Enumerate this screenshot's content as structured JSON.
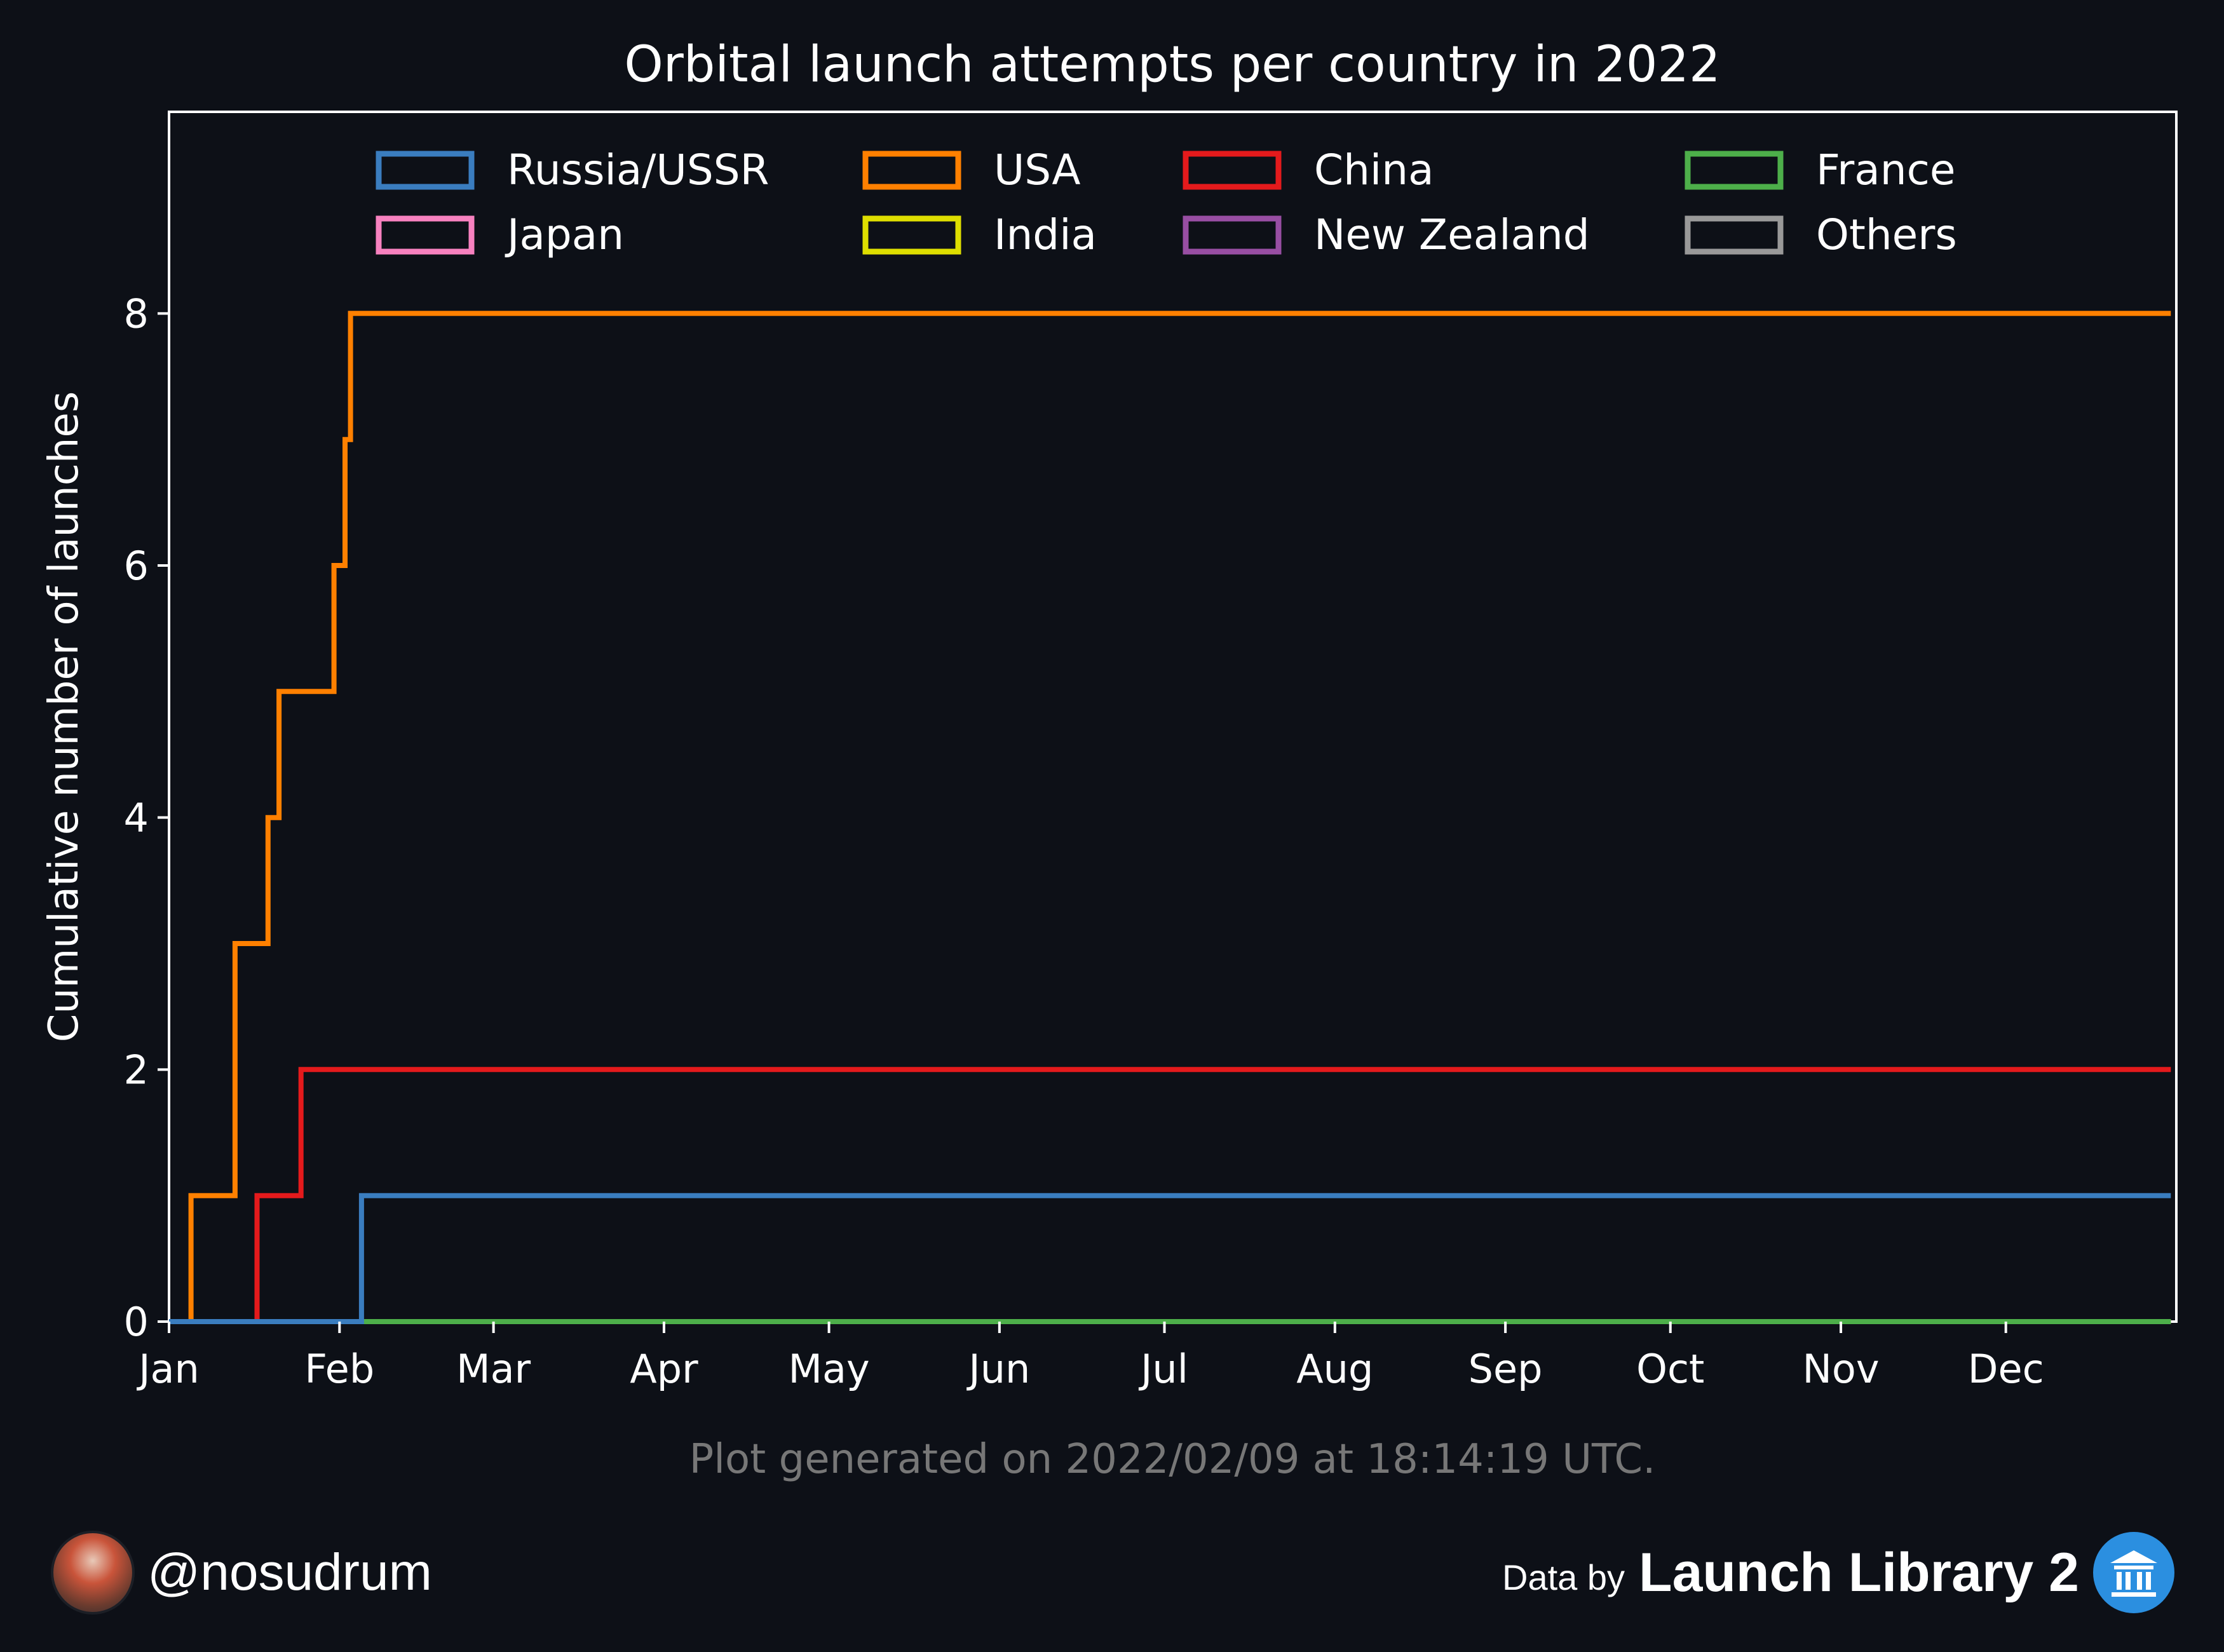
{
  "chart_data": {
    "type": "line",
    "step": true,
    "title": "Orbital launch attempts per country in 2022",
    "ylabel": "Cumulative number of launches",
    "xlabel": "",
    "x_axis": "date",
    "xlim": [
      "2022-01-01",
      "2022-12-31"
    ],
    "ylim": [
      0,
      9.6
    ],
    "yticks": [
      0,
      2,
      4,
      6,
      8
    ],
    "xticks": [
      {
        "date": "2022-01-01",
        "label": "Jan"
      },
      {
        "date": "2022-02-01",
        "label": "Feb"
      },
      {
        "date": "2022-03-01",
        "label": "Mar"
      },
      {
        "date": "2022-04-01",
        "label": "Apr"
      },
      {
        "date": "2022-05-01",
        "label": "May"
      },
      {
        "date": "2022-06-01",
        "label": "Jun"
      },
      {
        "date": "2022-07-01",
        "label": "Jul"
      },
      {
        "date": "2022-08-01",
        "label": "Aug"
      },
      {
        "date": "2022-09-01",
        "label": "Sep"
      },
      {
        "date": "2022-10-01",
        "label": "Oct"
      },
      {
        "date": "2022-11-01",
        "label": "Nov"
      },
      {
        "date": "2022-12-01",
        "label": "Dec"
      }
    ],
    "grid": false,
    "legend_position": "top",
    "series": [
      {
        "name": "Russia/USSR",
        "color": "#3a7dbf",
        "points": [
          [
            "2022-01-01",
            0
          ],
          [
            "2022-02-05",
            1
          ],
          [
            "2022-12-31",
            1
          ]
        ]
      },
      {
        "name": "USA",
        "color": "#ff8000",
        "points": [
          [
            "2022-01-01",
            0
          ],
          [
            "2022-01-05",
            1
          ],
          [
            "2022-01-13",
            3
          ],
          [
            "2022-01-19",
            4
          ],
          [
            "2022-01-21",
            5
          ],
          [
            "2022-01-31",
            6
          ],
          [
            "2022-02-02",
            7
          ],
          [
            "2022-02-03",
            8
          ],
          [
            "2022-12-31",
            8
          ]
        ]
      },
      {
        "name": "China",
        "color": "#e41a1c",
        "points": [
          [
            "2022-01-01",
            0
          ],
          [
            "2022-01-17",
            1
          ],
          [
            "2022-01-25",
            2
          ],
          [
            "2022-12-31",
            2
          ]
        ]
      },
      {
        "name": "France",
        "color": "#4daf4a",
        "points": [
          [
            "2022-01-01",
            0
          ],
          [
            "2022-12-31",
            0
          ]
        ]
      },
      {
        "name": "Japan",
        "color": "#f781bf",
        "points": [
          [
            "2022-01-01",
            0
          ],
          [
            "2022-12-31",
            0
          ]
        ]
      },
      {
        "name": "India",
        "color": "#dede00",
        "points": [
          [
            "2022-01-01",
            0
          ],
          [
            "2022-12-31",
            0
          ]
        ]
      },
      {
        "name": "New Zealand",
        "color": "#984ea3",
        "points": [
          [
            "2022-01-01",
            0
          ],
          [
            "2022-12-31",
            0
          ]
        ]
      },
      {
        "name": "Others",
        "color": "#999999",
        "points": [
          [
            "2022-01-01",
            0
          ],
          [
            "2022-12-31",
            0
          ]
        ]
      }
    ],
    "annotation": "Plot generated on 2022/02/09 at 18:14:19 UTC."
  },
  "footer": {
    "handle": "@nosudrum",
    "source_prefix": "Data by",
    "source_name": "Launch Library 2",
    "avatar_icon": "avatar-photo",
    "logo_icon": "launch-library-logo-icon"
  },
  "colors": {
    "background": "#0d1017",
    "axis": "#ffffff",
    "annotation_text": "#777777"
  }
}
